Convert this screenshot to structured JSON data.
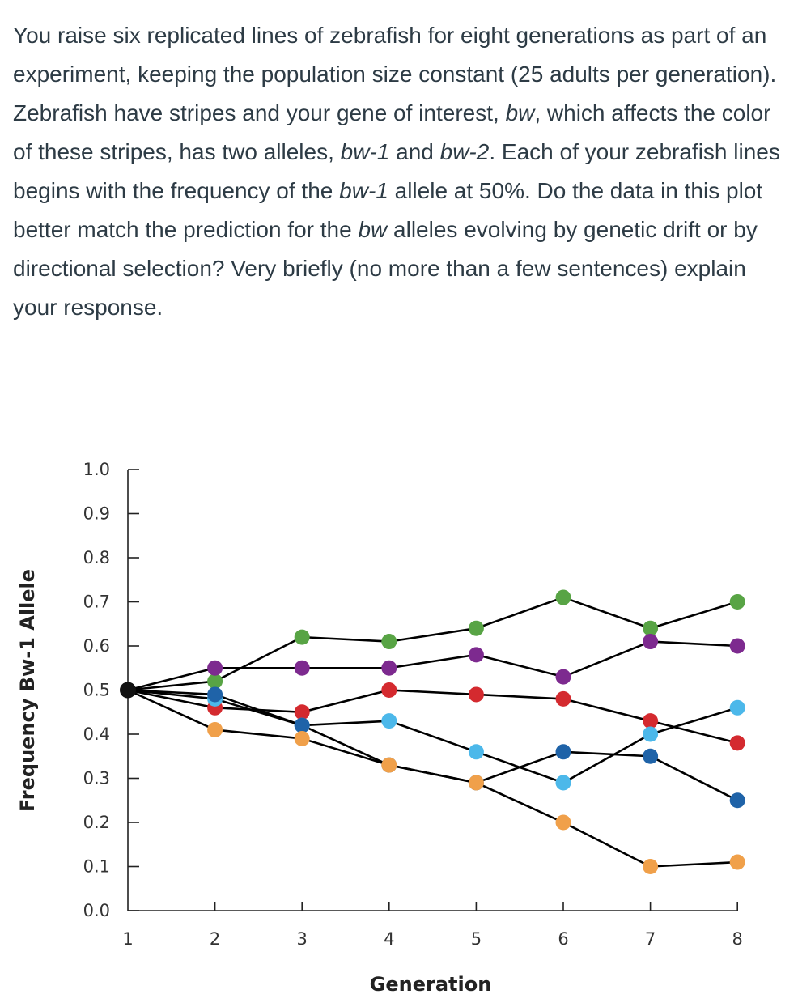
{
  "question": {
    "part1": "You raise six replicated lines of zebrafish for eight generations as part of an experiment, keeping the population size constant (25 adults per generation). Zebrafish have stripes and your gene of interest, ",
    "gene1": "bw",
    "part2": ", which affects the color of these stripes, has two alleles, ",
    "allele1": "bw-1",
    "part3": " and ",
    "allele2": "bw-2",
    "part4": ". Each of your zebrafish lines begins with the frequency of the ",
    "allele1b": "bw-1",
    "part5": " allele at 50%. Do the data in this plot better match the prediction for the ",
    "gene2": "bw",
    "part6": " alleles evolving by genetic drift or by directional selection? Very briefly (no more than a few sentences) explain your response."
  },
  "chart_data": {
    "type": "line",
    "xlabel": "Generation",
    "ylabel": "Frequency Bw-1 Allele",
    "x": [
      1,
      2,
      3,
      4,
      5,
      6,
      7,
      8
    ],
    "xlim": [
      1,
      8
    ],
    "ylim": [
      0,
      1
    ],
    "yticks": [
      "0.0",
      "0.1",
      "0.2",
      "0.3",
      "0.4",
      "0.5",
      "0.6",
      "0.7",
      "0.8",
      "0.9",
      "1.0"
    ],
    "xticks": [
      "1",
      "2",
      "3",
      "4",
      "5",
      "6",
      "7",
      "8"
    ],
    "grid": false,
    "legend": "none",
    "start_point": {
      "x": 1,
      "y": 0.5,
      "color": "#111111"
    },
    "series": [
      {
        "color": "#58a445",
        "values": [
          0.5,
          0.52,
          0.62,
          0.61,
          0.64,
          0.71,
          0.64,
          0.7
        ]
      },
      {
        "color": "#7d2a8f",
        "values": [
          0.5,
          0.55,
          0.55,
          0.55,
          0.58,
          0.53,
          0.61,
          0.6
        ]
      },
      {
        "color": "#d42a2f",
        "values": [
          0.5,
          0.46,
          0.45,
          0.5,
          0.49,
          0.48,
          0.43,
          0.38
        ]
      },
      {
        "color": "#4cb8ea",
        "values": [
          0.5,
          0.48,
          0.42,
          0.43,
          0.36,
          0.29,
          0.4,
          0.46
        ]
      },
      {
        "color": "#1f63a8",
        "values": [
          0.5,
          0.49,
          0.42,
          0.33,
          0.29,
          0.36,
          0.35,
          0.25
        ]
      },
      {
        "color": "#f0a04a",
        "values": [
          0.5,
          0.41,
          0.39,
          0.33,
          0.29,
          0.2,
          0.1,
          0.11
        ]
      }
    ]
  }
}
